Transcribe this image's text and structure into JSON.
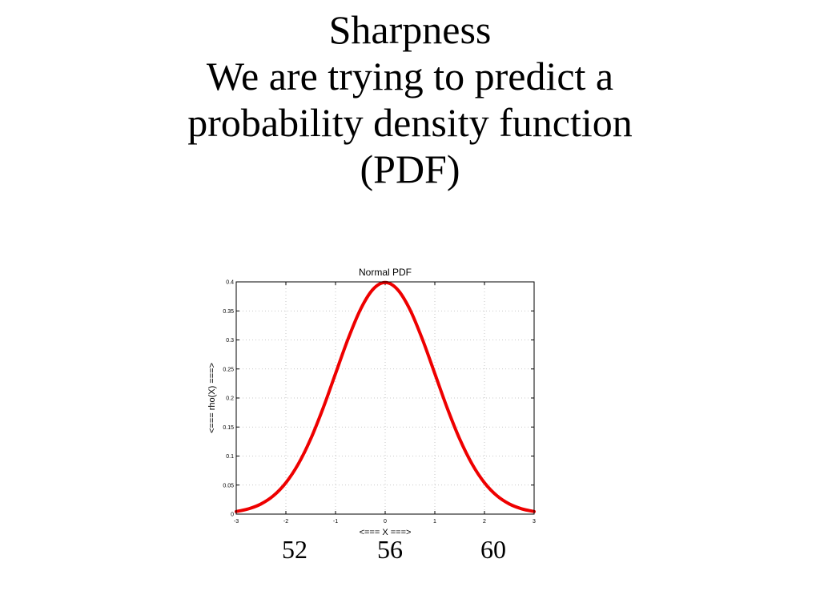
{
  "slide": {
    "title_lines": [
      "Sharpness",
      "We are trying to predict a",
      "probability density function",
      "(PDF)"
    ]
  },
  "annotations": {
    "left": "52",
    "center": "56",
    "right": "60"
  },
  "chart_data": {
    "type": "line",
    "title": "Normal PDF",
    "xlabel": "<=== X ===>",
    "ylabel": "<=== rho(X) ===>",
    "xlim": [
      -3,
      3
    ],
    "ylim": [
      0,
      0.4
    ],
    "xticks": [
      "-3",
      "-2",
      "-1",
      "0",
      "1",
      "2",
      "3"
    ],
    "yticks": [
      "0",
      "0.05",
      "0.1",
      "0.15",
      "0.2",
      "0.25",
      "0.3",
      "0.35",
      "0.4"
    ],
    "grid": true,
    "series": [
      {
        "color": "#ee0000",
        "x": [
          -3,
          -2.75,
          -2.5,
          -2.25,
          -2,
          -1.75,
          -1.5,
          -1.25,
          -1,
          -0.75,
          -0.5,
          -0.25,
          0,
          0.25,
          0.5,
          0.75,
          1,
          1.25,
          1.5,
          1.75,
          2,
          2.25,
          2.5,
          2.75,
          3
        ],
        "y": [
          0.0044,
          0.0091,
          0.0175,
          0.0317,
          0.054,
          0.0863,
          0.1295,
          0.1826,
          0.242,
          0.3011,
          0.3521,
          0.3867,
          0.3989,
          0.3867,
          0.3521,
          0.3011,
          0.242,
          0.1826,
          0.1295,
          0.0863,
          0.054,
          0.0317,
          0.0175,
          0.0091,
          0.0044
        ]
      }
    ]
  }
}
